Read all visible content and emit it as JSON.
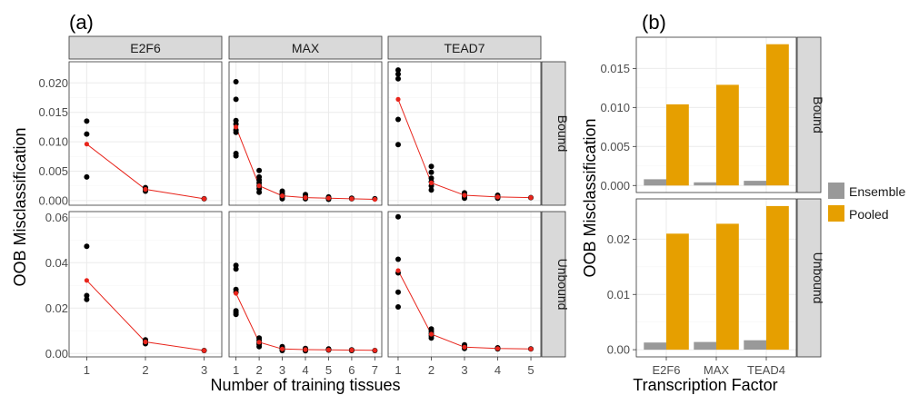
{
  "panel_labels": [
    "(a)",
    "(b)"
  ],
  "colors": {
    "point": "#000000",
    "mean": "#e8251c",
    "strip": "#d9d9d9",
    "grid": "#ebebeb",
    "ensemble": "#999999",
    "pooled": "#e69f00"
  },
  "chart_data": [
    {
      "type": "scatter",
      "panel": "(a)",
      "xlabel": "Number of training tissues",
      "ylabel": "OOB Misclassification",
      "facet_columns": [
        "E2F6",
        "MAX",
        "TEAD7"
      ],
      "facet_rows": [
        "Bound",
        "Unbound"
      ],
      "grid": true,
      "yticks": {
        "Bound": [
          "0.000",
          "0.005",
          "0.010",
          "0.015",
          "0.020"
        ],
        "Unbound": [
          "0.00",
          "0.02",
          "0.04",
          "0.06"
        ]
      },
      "ylim": {
        "Bound": [
          -0.0008,
          0.0236
        ],
        "Unbound": [
          -0.0015,
          0.0625
        ]
      },
      "panels": [
        {
          "column": "E2F6",
          "row": "Bound",
          "x_ticks": [
            "1",
            "2",
            "3"
          ],
          "points": [
            [
              1,
              0.0135
            ],
            [
              1,
              0.0113
            ],
            [
              1,
              0.004
            ],
            [
              2,
              0.0022
            ],
            [
              2,
              0.0019
            ],
            [
              2,
              0.0016
            ],
            [
              3,
              0.0003
            ]
          ],
          "mean": [
            [
              1,
              0.0096
            ],
            [
              2,
              0.0019
            ],
            [
              3,
              0.0003
            ]
          ]
        },
        {
          "column": "MAX",
          "row": "Bound",
          "x_ticks": [
            "1",
            "2",
            "3",
            "4",
            "5",
            "6",
            "7"
          ],
          "points": [
            [
              1,
              0.0202
            ],
            [
              1,
              0.0172
            ],
            [
              1,
              0.0136
            ],
            [
              1,
              0.013
            ],
            [
              1,
              0.012
            ],
            [
              1,
              0.0116
            ],
            [
              1,
              0.008
            ],
            [
              1,
              0.0076
            ],
            [
              2,
              0.0051
            ],
            [
              2,
              0.004
            ],
            [
              2,
              0.0035
            ],
            [
              2,
              0.003
            ],
            [
              2,
              0.0025
            ],
            [
              2,
              0.002
            ],
            [
              2,
              0.0014
            ],
            [
              3,
              0.0016
            ],
            [
              3,
              0.0012
            ],
            [
              3,
              0.0009
            ],
            [
              3,
              0.0006
            ],
            [
              3,
              0.0003
            ],
            [
              4,
              0.001
            ],
            [
              4,
              0.0006
            ],
            [
              4,
              0.0003
            ],
            [
              5,
              0.0006
            ],
            [
              5,
              0.0004
            ],
            [
              5,
              0.0002
            ],
            [
              6,
              0.0004
            ],
            [
              6,
              0.0003
            ],
            [
              7,
              0.0003
            ]
          ],
          "mean": [
            [
              1,
              0.0125
            ],
            [
              2,
              0.0025
            ],
            [
              3,
              0.0008
            ],
            [
              4,
              0.0005
            ],
            [
              5,
              0.0004
            ],
            [
              6,
              0.0003
            ],
            [
              7,
              0.0002
            ]
          ]
        },
        {
          "column": "TEAD7",
          "row": "Bound",
          "x_ticks": [
            "1",
            "2",
            "3",
            "4",
            "5"
          ],
          "points": [
            [
              1,
              0.0222
            ],
            [
              1,
              0.0215
            ],
            [
              1,
              0.0207
            ],
            [
              1,
              0.0138
            ],
            [
              1,
              0.0095
            ],
            [
              2,
              0.0058
            ],
            [
              2,
              0.0048
            ],
            [
              2,
              0.0038
            ],
            [
              2,
              0.0032
            ],
            [
              2,
              0.0025
            ],
            [
              2,
              0.0018
            ],
            [
              3,
              0.0013
            ],
            [
              3,
              0.0009
            ],
            [
              3,
              0.0006
            ],
            [
              3,
              0.0004
            ],
            [
              4,
              0.0009
            ],
            [
              4,
              0.0006
            ],
            [
              4,
              0.0004
            ],
            [
              5,
              0.0005
            ]
          ],
          "mean": [
            [
              1,
              0.0172
            ],
            [
              2,
              0.003
            ],
            [
              3,
              0.0009
            ],
            [
              4,
              0.0006
            ],
            [
              5,
              0.0005
            ]
          ]
        },
        {
          "column": "E2F6",
          "row": "Unbound",
          "x_ticks": [
            "1",
            "2",
            "3"
          ],
          "points": [
            [
              1,
              0.0472
            ],
            [
              1,
              0.0255
            ],
            [
              1,
              0.0238
            ],
            [
              2,
              0.006
            ],
            [
              2,
              0.0052
            ],
            [
              2,
              0.0043
            ],
            [
              3,
              0.0013
            ]
          ],
          "mean": [
            [
              1,
              0.0322
            ],
            [
              2,
              0.0051
            ],
            [
              3,
              0.0013
            ]
          ]
        },
        {
          "column": "MAX",
          "row": "Unbound",
          "x_ticks": [
            "1",
            "2",
            "3",
            "4",
            "5",
            "6",
            "7"
          ],
          "points": [
            [
              1,
              0.0388
            ],
            [
              1,
              0.0372
            ],
            [
              1,
              0.0282
            ],
            [
              1,
              0.027
            ],
            [
              1,
              0.0188
            ],
            [
              1,
              0.018
            ],
            [
              1,
              0.0172
            ],
            [
              2,
              0.0068
            ],
            [
              2,
              0.0058
            ],
            [
              2,
              0.0048
            ],
            [
              2,
              0.004
            ],
            [
              2,
              0.003
            ],
            [
              3,
              0.003
            ],
            [
              3,
              0.0024
            ],
            [
              3,
              0.0018
            ],
            [
              3,
              0.0013
            ],
            [
              4,
              0.0022
            ],
            [
              4,
              0.0016
            ],
            [
              4,
              0.0012
            ],
            [
              5,
              0.002
            ],
            [
              5,
              0.0015
            ],
            [
              6,
              0.0016
            ],
            [
              6,
              0.0013
            ],
            [
              7,
              0.0013
            ]
          ],
          "mean": [
            [
              1,
              0.0265
            ],
            [
              2,
              0.005
            ],
            [
              3,
              0.002
            ],
            [
              4,
              0.0017
            ],
            [
              5,
              0.0016
            ],
            [
              6,
              0.0015
            ],
            [
              7,
              0.0014
            ]
          ]
        },
        {
          "column": "TEAD7",
          "row": "Unbound",
          "x_ticks": [
            "1",
            "2",
            "3",
            "4",
            "5"
          ],
          "points": [
            [
              1,
              0.0602
            ],
            [
              1,
              0.0415
            ],
            [
              1,
              0.0355
            ],
            [
              1,
              0.027
            ],
            [
              1,
              0.0205
            ],
            [
              2,
              0.0108
            ],
            [
              2,
              0.0098
            ],
            [
              2,
              0.0088
            ],
            [
              2,
              0.0078
            ],
            [
              2,
              0.0068
            ],
            [
              3,
              0.0038
            ],
            [
              3,
              0.003
            ],
            [
              3,
              0.0022
            ],
            [
              4,
              0.0025
            ],
            [
              4,
              0.002
            ],
            [
              5,
              0.002
            ]
          ],
          "mean": [
            [
              1,
              0.0365
            ],
            [
              2,
              0.0085
            ],
            [
              3,
              0.0028
            ],
            [
              4,
              0.0022
            ],
            [
              5,
              0.002
            ]
          ]
        }
      ]
    },
    {
      "type": "bar",
      "panel": "(b)",
      "xlabel": "Transcription Factor",
      "ylabel": "OOB Misclassification",
      "categories": [
        "E2F6",
        "MAX",
        "TEAD4"
      ],
      "facet_rows": [
        "Bound",
        "Unbound"
      ],
      "legend": {
        "placement": "right",
        "entries": [
          "Ensemble",
          "Pooled"
        ]
      },
      "grid": true,
      "yticks": {
        "Bound": [
          "0.000",
          "0.005",
          "0.010",
          "0.015"
        ],
        "Unbound": [
          "0.00",
          "0.01",
          "0.02"
        ]
      },
      "ylim": {
        "Bound": [
          -0.0009,
          0.019
        ],
        "Unbound": [
          -0.0013,
          0.0273
        ]
      },
      "series": [
        {
          "name": "Ensemble",
          "values": {
            "Bound": [
              0.0008,
              0.0004,
              0.0006
            ],
            "Unbound": [
              0.0013,
              0.0014,
              0.0017
            ]
          }
        },
        {
          "name": "Pooled",
          "values": {
            "Bound": [
              0.0104,
              0.0129,
              0.0181
            ],
            "Unbound": [
              0.021,
              0.0228,
              0.026
            ]
          }
        }
      ]
    }
  ]
}
